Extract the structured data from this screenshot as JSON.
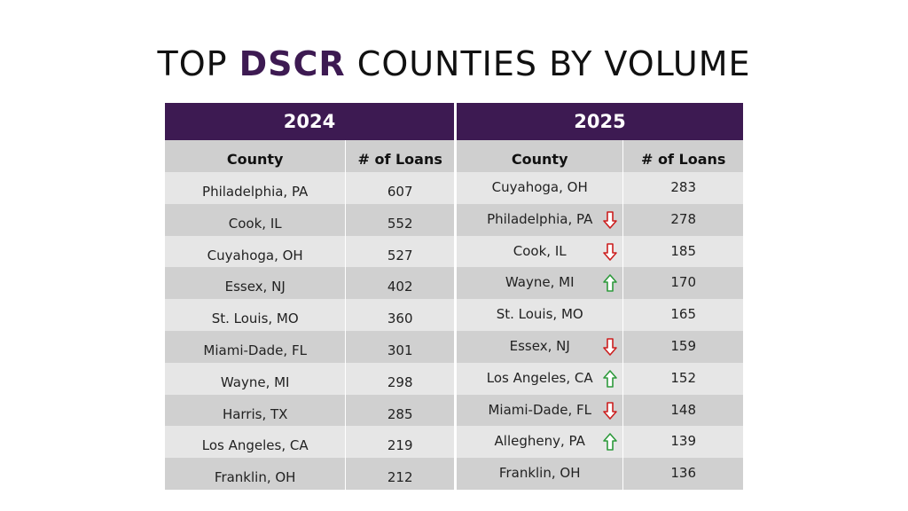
{
  "title": {
    "prefix": "TOP",
    "accent": "DSCR",
    "suffix": "COUNTIES BY VOLUME"
  },
  "colors": {
    "header": "#3d1a52",
    "up": "#2e9a3c",
    "down": "#cc1f1f"
  },
  "tables": [
    {
      "year": "2024",
      "col_county": "County",
      "col_loans": "# of Loans",
      "rows": [
        {
          "county": "Philadelphia, PA",
          "loans": "607"
        },
        {
          "county": "Cook, IL",
          "loans": "552"
        },
        {
          "county": "Cuyahoga, OH",
          "loans": "527"
        },
        {
          "county": "Essex, NJ",
          "loans": "402"
        },
        {
          "county": "St. Louis, MO",
          "loans": "360"
        },
        {
          "county": "Miami-Dade, FL",
          "loans": "301"
        },
        {
          "county": "Wayne, MI",
          "loans": "298"
        },
        {
          "county": "Harris, TX",
          "loans": "285"
        },
        {
          "county": "Los Angeles, CA",
          "loans": "219"
        },
        {
          "county": "Franklin, OH",
          "loans": "212"
        }
      ]
    },
    {
      "year": "2025",
      "col_county": "County",
      "col_loans": "# of Loans",
      "rows": [
        {
          "county": "Cuyahoga, OH",
          "loans": "283",
          "trend": ""
        },
        {
          "county": "Philadelphia, PA",
          "loans": "278",
          "trend": "down"
        },
        {
          "county": "Cook, IL",
          "loans": "185",
          "trend": "down"
        },
        {
          "county": "Wayne, MI",
          "loans": "170",
          "trend": "up"
        },
        {
          "county": "St. Louis, MO",
          "loans": "165",
          "trend": ""
        },
        {
          "county": "Essex, NJ",
          "loans": "159",
          "trend": "down"
        },
        {
          "county": "Los Angeles, CA",
          "loans": "152",
          "trend": "up"
        },
        {
          "county": "Miami-Dade, FL",
          "loans": "148",
          "trend": "down"
        },
        {
          "county": "Allegheny, PA",
          "loans": "139",
          "trend": "up"
        },
        {
          "county": "Franklin, OH",
          "loans": "136",
          "trend": ""
        }
      ]
    }
  ]
}
